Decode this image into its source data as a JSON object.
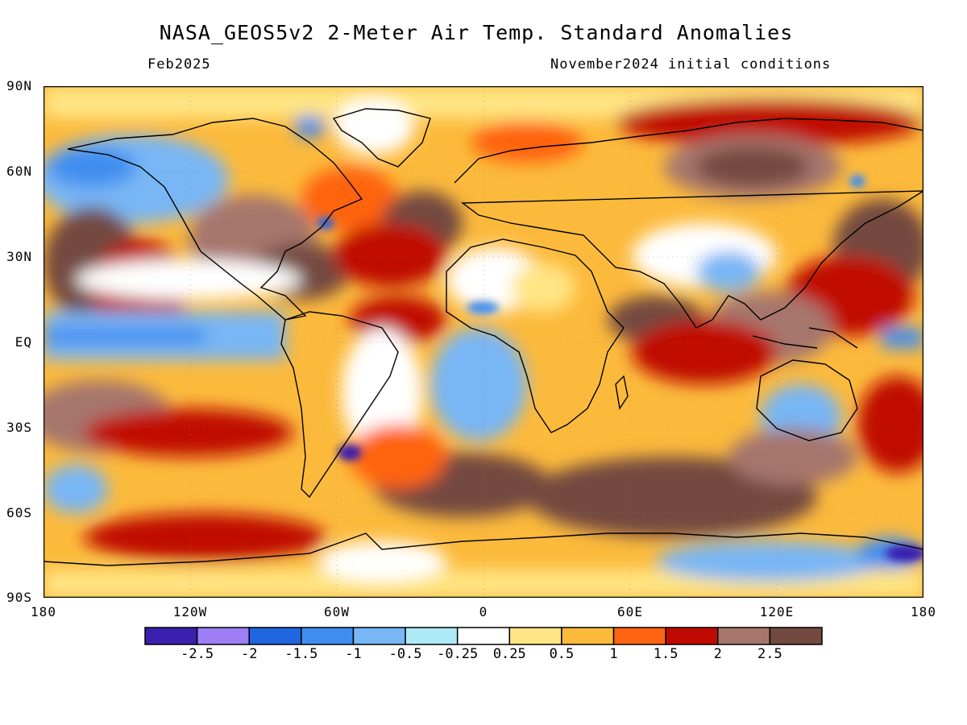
{
  "title": "NASA_GEOS5v2 2-Meter Air Temp. Standard Anomalies",
  "subtitle_left": "Feb2025",
  "subtitle_right": "November2024 initial conditions",
  "lat_labels": [
    "90N",
    "60N",
    "30N",
    "EQ",
    "30S",
    "60S",
    "90S"
  ],
  "lon_labels": [
    "180",
    "120W",
    "60W",
    "0",
    "60E",
    "120E",
    "180"
  ],
  "colorbar": {
    "colors": [
      "#3b1fae",
      "#9d7ef5",
      "#2066e0",
      "#3f8df0",
      "#78b6f5",
      "#aeeaf5",
      "#ffffff",
      "#ffe584",
      "#fcba3c",
      "#ff6410",
      "#c00a00",
      "#a6766d",
      "#734a40"
    ],
    "labels": [
      "-2.5",
      "-2",
      "-1.5",
      "-1",
      "-0.5",
      "-0.25",
      "0.25",
      "0.5",
      "1",
      "1.5",
      "2",
      "2.5"
    ]
  }
}
